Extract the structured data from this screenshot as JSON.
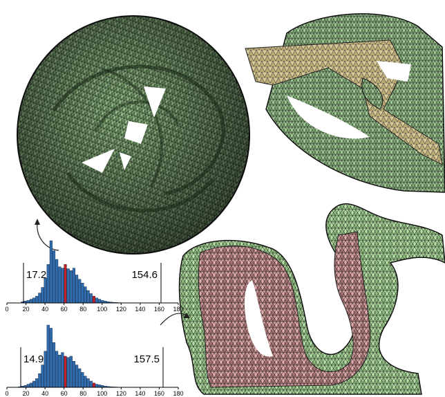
{
  "colors": {
    "mesh_green_dark": "#3f5a3d",
    "mesh_green_light": "#a9d19b",
    "mesh_tan": "#c8b98a",
    "mesh_pink": "#d9a0a0",
    "mesh_edge": "#1c1c1c",
    "bar_blue": "#2f6db0",
    "bar_red": "#c0202a"
  },
  "chart_data": [
    {
      "type": "bar",
      "title": "",
      "xlabel": "",
      "ylabel": "",
      "xlim": [
        0,
        180
      ],
      "x_ticks": [
        "0",
        "20",
        "40",
        "60",
        "80",
        "100",
        "120",
        "140",
        "160",
        "180"
      ],
      "bin_width": 3,
      "bin_start": 15,
      "values": [
        2,
        3,
        4,
        6,
        8,
        11,
        16,
        25,
        40,
        62,
        100,
        84,
        70,
        58,
        56,
        62,
        55,
        52,
        56,
        45,
        38,
        32,
        26,
        20,
        15,
        11,
        8,
        6,
        4,
        3,
        2,
        1.5,
        1,
        0.7,
        0.5,
        0.3,
        0.2,
        0.1,
        0.1,
        0.1,
        0.1
      ],
      "highlight_x": [
        60,
        90
      ],
      "min_annotation": "17.2",
      "max_annotation": "154.6"
    },
    {
      "type": "bar",
      "title": "",
      "xlabel": "",
      "ylabel": "",
      "xlim": [
        0,
        180
      ],
      "x_ticks": [
        "0",
        "20",
        "40",
        "60",
        "80",
        "100",
        "120",
        "140",
        "160",
        "180"
      ],
      "bin_width": 3,
      "bin_start": 12,
      "values": [
        1,
        2,
        3,
        5,
        7,
        10,
        14,
        22,
        36,
        58,
        100,
        95,
        72,
        58,
        52,
        56,
        50,
        48,
        50,
        42,
        36,
        30,
        24,
        18,
        14,
        10,
        7,
        5,
        4,
        3,
        2,
        1.5,
        1,
        0.7,
        0.5,
        0.3,
        0.2,
        0.2,
        0.1,
        0.1,
        0.1,
        0.1,
        0.1
      ],
      "highlight_x": [
        60,
        90
      ],
      "min_annotation": "14.9",
      "max_annotation": "157.5"
    }
  ]
}
